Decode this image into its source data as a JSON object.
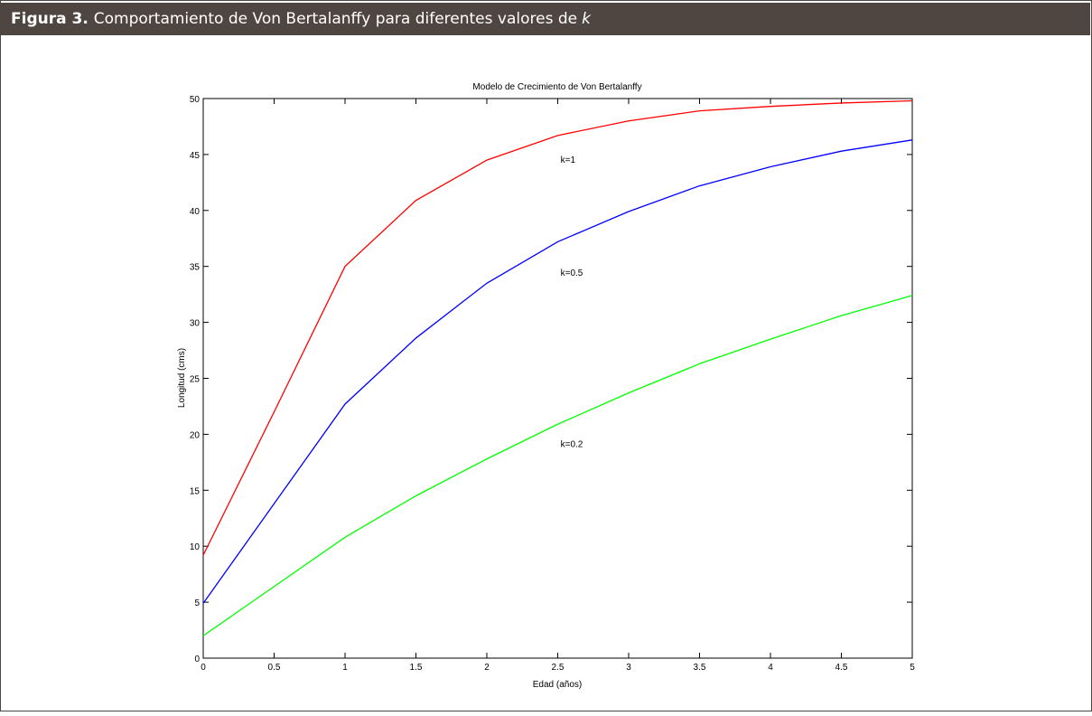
{
  "caption": {
    "label": "Figura 3.",
    "text": "Comportamiento de Von Bertalanffy para diferentes valores de",
    "variable": "k"
  },
  "chart_data": {
    "type": "line",
    "title": "Modelo de Crecimiento de Von Bertalanffy",
    "xlabel": "Edad (años)",
    "ylabel": "Longitud (cms)",
    "xlim": [
      0,
      5
    ],
    "ylim": [
      0,
      50
    ],
    "grid": false,
    "x": [
      0,
      0.5,
      1,
      1.5,
      2,
      2.5,
      3,
      3.5,
      4,
      4.5,
      5
    ],
    "x_ticks": [
      "0",
      "0.5",
      "1",
      "1.5",
      "2",
      "2.5",
      "3",
      "3.5",
      "4",
      "4.5",
      "5"
    ],
    "y_ticks": [
      "0",
      "5",
      "10",
      "15",
      "20",
      "25",
      "30",
      "35",
      "40",
      "45",
      "50"
    ],
    "series": [
      {
        "name": "k=1",
        "color": "#ff0000",
        "label_x": 2.52,
        "label_y": 44.6,
        "values": [
          9.2,
          22.0,
          35.0,
          40.9,
          44.5,
          46.7,
          48.0,
          48.9,
          49.3,
          49.6,
          49.8
        ]
      },
      {
        "name": "k=0.5",
        "color": "#0000ff",
        "label_x": 2.52,
        "label_y": 34.5,
        "values": [
          4.9,
          13.8,
          22.7,
          28.6,
          33.5,
          37.2,
          39.9,
          42.2,
          43.9,
          45.3,
          46.3
        ]
      },
      {
        "name": "k=0.2",
        "color": "#00ff00",
        "label_x": 2.52,
        "label_y": 19.2,
        "values": [
          2.0,
          6.4,
          10.8,
          14.5,
          17.8,
          20.9,
          23.7,
          26.3,
          28.5,
          30.6,
          32.4
        ]
      }
    ]
  }
}
